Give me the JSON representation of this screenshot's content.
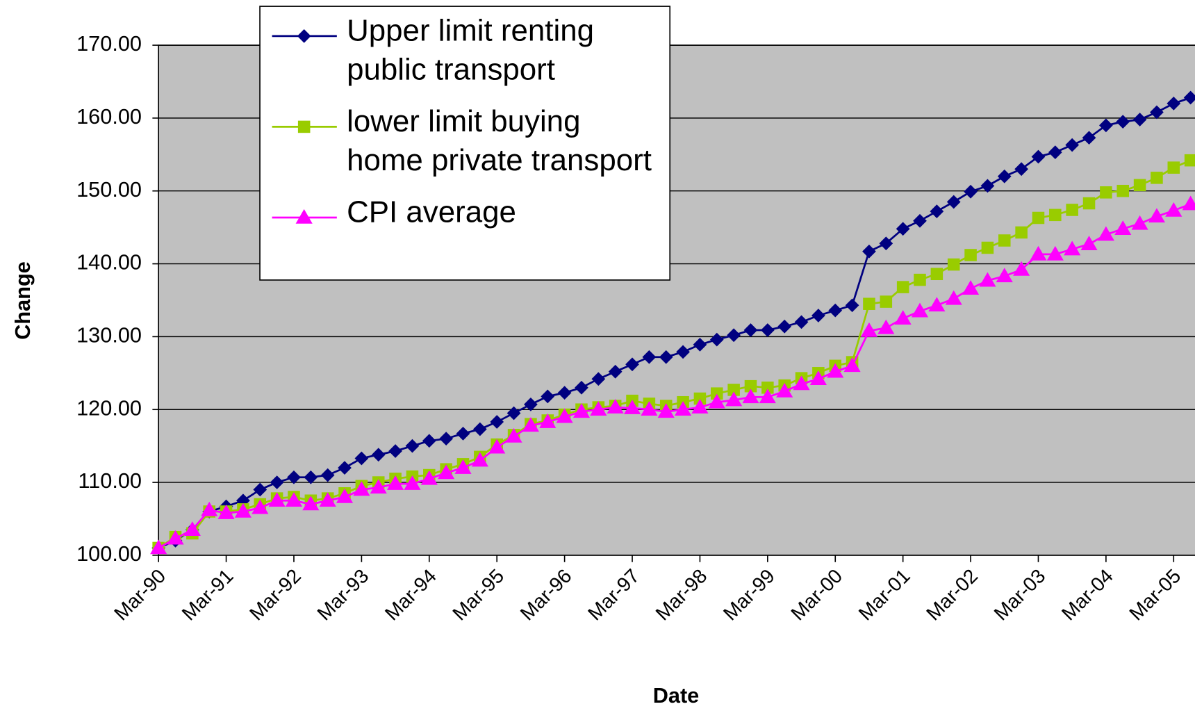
{
  "chart_data": {
    "type": "line",
    "x_label": "Date",
    "y_label": "Change",
    "categories": [
      "Mar-90",
      null,
      null,
      null,
      "Mar-91",
      null,
      null,
      null,
      "Mar-92",
      null,
      null,
      null,
      "Mar-93",
      null,
      null,
      null,
      "Mar-94",
      null,
      null,
      null,
      "Mar-95",
      null,
      null,
      null,
      "Mar-96",
      null,
      null,
      null,
      "Mar-97",
      null,
      null,
      null,
      "Mar-98",
      null,
      null,
      null,
      "Mar-99",
      null,
      null,
      null,
      "Mar-00",
      null,
      null,
      null,
      "Mar-01",
      null,
      null,
      null,
      "Mar-02",
      null,
      null,
      null,
      "Mar-03",
      null,
      null,
      null,
      "Mar-04",
      null,
      null,
      null,
      "Mar-05",
      null
    ],
    "ylim": [
      100,
      170
    ],
    "yticks": [
      {
        "value": 100,
        "label": "100.00"
      },
      {
        "value": 110,
        "label": "110.00"
      },
      {
        "value": 120,
        "label": "120.00"
      },
      {
        "value": 130,
        "label": "130.00"
      },
      {
        "value": 140,
        "label": "140.00"
      },
      {
        "value": 150,
        "label": "150.00"
      },
      {
        "value": 160,
        "label": "160.00"
      },
      {
        "value": 170,
        "label": "170.00"
      }
    ],
    "grid": true,
    "legend": "top-left",
    "series": [
      {
        "name": "Upper limit renting public transport",
        "color": "#000080",
        "marker": "diamond",
        "values": [
          101.0,
          102.0,
          103.5,
          106.0,
          106.7,
          107.5,
          109.0,
          110.0,
          110.7,
          110.7,
          111.0,
          112.0,
          113.3,
          113.8,
          114.3,
          115.0,
          115.7,
          116.0,
          116.7,
          117.3,
          118.3,
          119.5,
          120.7,
          121.8,
          122.3,
          123.0,
          124.2,
          125.2,
          126.2,
          127.2,
          127.2,
          127.9,
          128.9,
          129.6,
          130.2,
          130.9,
          130.9,
          131.4,
          132.0,
          132.9,
          133.6,
          134.3,
          141.7,
          142.8,
          144.8,
          145.9,
          147.2,
          148.5,
          149.9,
          150.7,
          152.0,
          153.0,
          154.7,
          155.3,
          156.3,
          157.3,
          159.0,
          159.5,
          159.8,
          160.8,
          162.0,
          162.8
        ]
      },
      {
        "name": "lower limit buying home private transport",
        "color": "#99CC00",
        "marker": "square",
        "values": [
          101.0,
          102.5,
          103.0,
          106.0,
          106.0,
          106.3,
          107.0,
          107.8,
          108.0,
          107.5,
          107.8,
          108.5,
          109.5,
          110.0,
          110.5,
          110.8,
          111.0,
          111.8,
          112.5,
          113.5,
          115.2,
          116.5,
          118.0,
          118.5,
          119.3,
          120.0,
          120.3,
          120.5,
          121.2,
          120.8,
          120.5,
          121.0,
          121.5,
          122.2,
          122.7,
          123.2,
          123.0,
          123.3,
          124.3,
          125.0,
          126.0,
          126.5,
          134.5,
          134.8,
          136.8,
          137.8,
          138.6,
          139.9,
          141.2,
          142.2,
          143.2,
          144.3,
          146.3,
          146.7,
          147.4,
          148.3,
          149.8,
          150.0,
          150.8,
          151.8,
          153.2,
          154.2
        ]
      },
      {
        "name": "CPI average",
        "color": "#FF00FF",
        "marker": "triangle",
        "values": [
          101.0,
          102.3,
          103.5,
          106.2,
          105.8,
          106.0,
          106.5,
          107.5,
          107.5,
          107.0,
          107.5,
          108.0,
          109.0,
          109.3,
          109.8,
          109.8,
          110.5,
          111.3,
          112.0,
          113.0,
          114.8,
          116.3,
          117.8,
          118.3,
          119.0,
          119.7,
          120.0,
          120.3,
          120.2,
          120.0,
          119.7,
          120.0,
          120.3,
          121.0,
          121.3,
          121.7,
          121.7,
          122.5,
          123.5,
          124.2,
          125.2,
          126.0,
          130.8,
          131.2,
          132.5,
          133.5,
          134.3,
          135.2,
          136.6,
          137.7,
          138.3,
          139.2,
          141.3,
          141.3,
          142.0,
          142.7,
          144.0,
          144.8,
          145.5,
          146.5,
          147.3,
          148.2
        ]
      }
    ]
  }
}
